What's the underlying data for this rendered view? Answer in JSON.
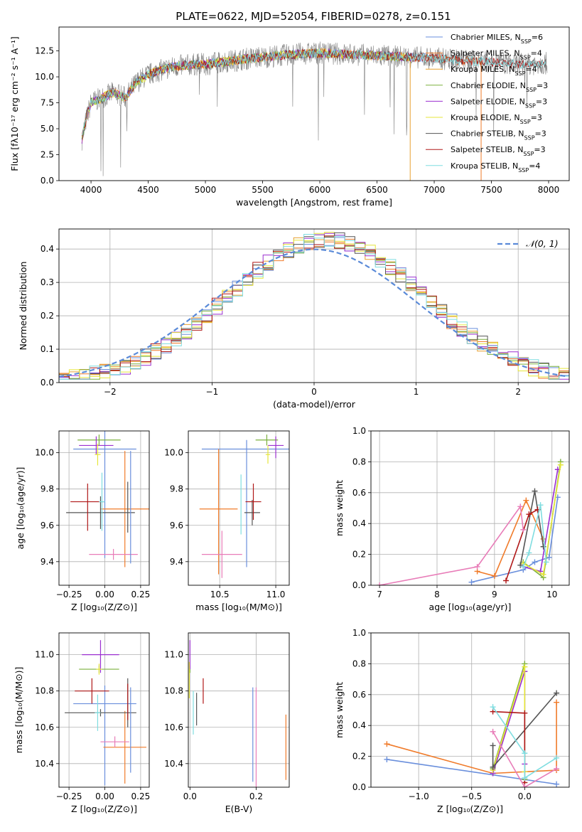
{
  "figure": {
    "title": "PLATE=0622, MJD=52054, FIBERID=0278, z=0.151",
    "colors": {
      "Chabrier MILES": "#6a8fdc",
      "Salpeter MILES": "#f07b2a",
      "Kroupa MILES": "#e8a030",
      "Chabrier ELODIE": "#7bb03e",
      "Salpeter ELODIE": "#9b2fd0",
      "Kroupa ELODIE": "#e6e63a",
      "Chabrier STELIB": "#555555",
      "Salpeter STELIB": "#b01818",
      "Kroupa STELIB": "#7fdde0",
      "extra": "#e87cb8",
      "data": "#808080"
    }
  },
  "chart_data": [
    {
      "id": "spectrum",
      "type": "line",
      "xlabel": "wavelength [Angstrom, rest frame]",
      "ylabel": "Flux [fλ10⁻¹⁷ erg cm⁻² s⁻¹ A⁻¹]",
      "xlim": [
        3720,
        8180
      ],
      "ylim": [
        0,
        14.8
      ],
      "xticks": [
        4000,
        4500,
        5000,
        5500,
        6000,
        6500,
        7000,
        7500,
        8000
      ],
      "yticks": [
        0.0,
        2.5,
        5.0,
        7.5,
        10.0,
        12.5
      ],
      "legend_position": "upper right",
      "legend": [
        {
          "name": "Chabrier MILES, N_SSP=6",
          "text": "Chabrier MILES, N",
          "sub": "SSP",
          "tail": "=6"
        },
        {
          "name": "Salpeter MILES, N_SSP=4",
          "text": "Salpeter MILES, N",
          "sub": "SSP",
          "tail": "=4"
        },
        {
          "name": "Kroupa MILES, N_SSP=4",
          "text": "Kroupa MILES, N",
          "sub": "SSP",
          "tail": "=4"
        },
        {
          "name": "Chabrier ELODIE, N_SSP=3",
          "text": "Chabrier ELODIE, N",
          "sub": "SSP",
          "tail": "=3"
        },
        {
          "name": "Salpeter ELODIE, N_SSP=3",
          "text": "Salpeter ELODIE, N",
          "sub": "SSP",
          "tail": "=3"
        },
        {
          "name": "Kroupa ELODIE, N_SSP=3",
          "text": "Kroupa ELODIE, N",
          "sub": "SSP",
          "tail": "=3"
        },
        {
          "name": "Chabrier STELIB, N_SSP=3",
          "text": "Chabrier STELIB, N",
          "sub": "SSP",
          "tail": "=3"
        },
        {
          "name": "Salpeter STELIB, N_SSP=3",
          "text": "Salpeter STELIB, N",
          "sub": "SSP",
          "tail": "=3"
        },
        {
          "name": "Kroupa STELIB, N_SSP=4",
          "text": "Kroupa STELIB, N",
          "sub": "SSP",
          "tail": "=4"
        }
      ],
      "continuum": {
        "x": [
          3920,
          3960,
          4000,
          4100,
          4200,
          4300,
          4400,
          4500,
          4600,
          4700,
          4800,
          4900,
          5000,
          5200,
          5400,
          5600,
          5800,
          6000,
          6200,
          6400,
          6600,
          6800,
          7000,
          7200,
          7400,
          7600,
          7800,
          7980
        ],
        "y": [
          4.0,
          6.0,
          7.5,
          8.0,
          8.5,
          8.0,
          9.5,
          10.2,
          10.6,
          10.9,
          11.1,
          11.2,
          11.2,
          11.5,
          11.8,
          12.0,
          12.2,
          12.3,
          12.2,
          12.1,
          12.0,
          11.9,
          11.8,
          11.6,
          11.5,
          11.3,
          11.2,
          11.3
        ]
      }
    },
    {
      "id": "residuals",
      "type": "line",
      "xlabel": "(data-model)/error",
      "ylabel": "Normed distribution",
      "xlim": [
        -2.5,
        2.5
      ],
      "ylim": [
        0,
        0.46
      ],
      "xticks": [
        -2,
        -1,
        0,
        1,
        2
      ],
      "xticklabels": [
        "−2",
        "−1",
        "0",
        "1",
        "2"
      ],
      "yticks": [
        0.0,
        0.1,
        0.2,
        0.3,
        0.4
      ],
      "grid": true,
      "legend_position": "upper right",
      "legend": [
        "𝒩(0, 1)"
      ],
      "normal_curve": {
        "mean": 0,
        "sigma": 1
      }
    },
    {
      "id": "age-vs-Z",
      "type": "scatter",
      "xlabel": "Z [log₁₀(Z/Z⊙)]",
      "ylabel": "age  [log₁₀(age/yr)]",
      "xlim": [
        -0.32,
        0.31
      ],
      "ylim": [
        9.27,
        10.12
      ],
      "xticks": [
        -0.25,
        0.0,
        0.25
      ],
      "xticklabels": [
        "−0.25",
        "0.00",
        "0.25"
      ],
      "yticks": [
        9.4,
        9.6,
        9.8,
        10.0
      ],
      "grid": true,
      "points": [
        {
          "series": "Chabrier MILES",
          "x": 0.0,
          "y": 10.02,
          "xerr": 0.22,
          "yerr_lo": 0.6,
          "yerr_hi": 0.1
        },
        {
          "series": "Salpeter MILES",
          "x": 0.14,
          "y": 9.69,
          "xerr": 0.17,
          "yerr_lo": 0.32,
          "yerr_hi": 0.32
        },
        {
          "series": "Chabrier ELODIE",
          "x": -0.04,
          "y": 10.07,
          "xerr": 0.15,
          "yerr_lo": 0.03,
          "yerr_hi": 0.03
        },
        {
          "series": "Salpeter ELODIE",
          "x": -0.06,
          "y": 10.04,
          "xerr": 0.12,
          "yerr_lo": 0.05,
          "yerr_hi": 0.05
        },
        {
          "series": "Kroupa ELODIE",
          "x": -0.05,
          "y": 9.99,
          "xerr": 0.02,
          "yerr_lo": 0.06,
          "yerr_hi": 0.06
        },
        {
          "series": "Chabrier STELIB",
          "x": -0.03,
          "y": 9.67,
          "xerr": 0.24,
          "yerr_lo": 0.09,
          "yerr_hi": 0.09
        },
        {
          "series": "Salpeter STELIB",
          "x": -0.12,
          "y": 9.73,
          "xerr": 0.12,
          "yerr_lo": 0.16,
          "yerr_hi": 0.1
        },
        {
          "series": "Kroupa STELIB",
          "x": -0.02,
          "y": 9.73,
          "xerr": 0.02,
          "yerr_lo": 0.16,
          "yerr_hi": 0.16
        },
        {
          "series": "extra",
          "x": 0.06,
          "y": 9.44,
          "xerr": 0.17,
          "yerr_lo": 0.03,
          "yerr_hi": 0.03
        },
        {
          "series": "Chabrier MILES",
          "x": 0.18,
          "y": 9.7,
          "xerr": 0.0,
          "yerr_lo": 0.31,
          "yerr_hi": 0.31
        },
        {
          "series": "Chabrier STELIB",
          "x": 0.16,
          "y": 9.7,
          "xerr": 0.0,
          "yerr_lo": 0.14,
          "yerr_hi": 0.14
        }
      ]
    },
    {
      "id": "age-vs-mass",
      "type": "scatter",
      "xlabel": "mass [log₁₀(M/M⊙)]",
      "xlim": [
        10.22,
        11.12
      ],
      "ylim": [
        9.27,
        10.12
      ],
      "xticks": [
        10.5,
        11.0
      ],
      "xticklabels": [
        "10.5",
        "11.0"
      ],
      "yticks": [
        9.4,
        9.6,
        9.8,
        10.0
      ],
      "grid": true,
      "points": [
        {
          "series": "Chabrier MILES",
          "x": 10.74,
          "y": 10.02,
          "xerr": 0.4,
          "yerr_lo": 0.65,
          "yerr_hi": 0.05
        },
        {
          "series": "Salpeter MILES",
          "x": 10.49,
          "y": 9.69,
          "xerr": 0.17,
          "yerr_lo": 0.36,
          "yerr_hi": 0.33
        },
        {
          "series": "Chabrier ELODIE",
          "x": 10.92,
          "y": 10.07,
          "xerr": 0.1,
          "yerr_lo": 0.03,
          "yerr_hi": 0.03
        },
        {
          "series": "Salpeter ELODIE",
          "x": 11.0,
          "y": 10.04,
          "xerr": 0.07,
          "yerr_lo": 0.07,
          "yerr_hi": 0.05
        },
        {
          "series": "Kroupa ELODIE",
          "x": 10.93,
          "y": 9.99,
          "xerr": 0.02,
          "yerr_lo": 0.05,
          "yerr_hi": 0.05
        },
        {
          "series": "Chabrier STELIB",
          "x": 10.79,
          "y": 9.67,
          "xerr": 0.07,
          "yerr_lo": 0.07,
          "yerr_hi": 0.07
        },
        {
          "series": "Salpeter STELIB",
          "x": 10.8,
          "y": 9.73,
          "xerr": 0.07,
          "yerr_lo": 0.1,
          "yerr_hi": 0.1
        },
        {
          "series": "Kroupa STELIB",
          "x": 10.69,
          "y": 9.72,
          "xerr": 0.0,
          "yerr_lo": 0.17,
          "yerr_hi": 0.16
        },
        {
          "series": "extra",
          "x": 10.52,
          "y": 9.44,
          "xerr": 0.18,
          "yerr_lo": 0.13,
          "yerr_hi": 0.13
        }
      ]
    },
    {
      "id": "weight-vs-age",
      "type": "line",
      "xlabel": "age  [log₁₀(age/yr)]",
      "ylabel": "mass weight",
      "xlim": [
        6.85,
        10.3
      ],
      "ylim": [
        0,
        1.0
      ],
      "xticks": [
        7,
        8,
        9,
        10
      ],
      "xticklabels": [
        "7",
        "8",
        "9",
        "10"
      ],
      "yticks": [
        0.0,
        0.2,
        0.4,
        0.6,
        0.8,
        1.0
      ],
      "grid": true,
      "series": [
        {
          "series": "Chabrier MILES",
          "x": [
            8.6,
            9.5,
            9.7,
            9.95,
            10.1
          ],
          "y": [
            0.02,
            0.1,
            0.15,
            0.18,
            0.57
          ]
        },
        {
          "series": "Salpeter MILES",
          "x": [
            8.7,
            9.0,
            9.55,
            9.85
          ],
          "y": [
            0.09,
            0.06,
            0.55,
            0.3
          ]
        },
        {
          "series": "Chabrier ELODIE",
          "x": [
            9.5,
            9.85,
            10.15
          ],
          "y": [
            0.15,
            0.05,
            0.8
          ]
        },
        {
          "series": "Salpeter ELODIE",
          "x": [
            9.5,
            9.8,
            10.1
          ],
          "y": [
            0.12,
            0.09,
            0.75
          ]
        },
        {
          "series": "Kroupa ELODIE",
          "x": [
            9.5,
            9.85,
            10.15
          ],
          "y": [
            0.14,
            0.07,
            0.78
          ]
        },
        {
          "series": "Chabrier STELIB",
          "x": [
            9.45,
            9.7,
            9.85
          ],
          "y": [
            0.13,
            0.61,
            0.25
          ]
        },
        {
          "series": "Salpeter STELIB",
          "x": [
            9.2,
            9.6,
            9.75
          ],
          "y": [
            0.03,
            0.46,
            0.49
          ]
        },
        {
          "series": "Kroupa STELIB",
          "x": [
            9.5,
            9.6,
            9.8,
            9.9
          ],
          "y": [
            0.12,
            0.21,
            0.52,
            0.15
          ]
        },
        {
          "series": "extra",
          "x": [
            7.0,
            8.7,
            9.45,
            9.5
          ],
          "y": [
            0.0,
            0.12,
            0.51,
            0.36
          ]
        }
      ]
    },
    {
      "id": "mass-vs-Z",
      "type": "scatter",
      "xlabel": "Z [log₁₀(Z/Z⊙)]",
      "ylabel": "mass [log₁₀(M/M⊙)]",
      "xlim": [
        -0.32,
        0.31
      ],
      "ylim": [
        10.27,
        11.12
      ],
      "xticks": [
        -0.25,
        0.0,
        0.25
      ],
      "xticklabels": [
        "−0.25",
        "0.00",
        "0.25"
      ],
      "yticks": [
        10.4,
        10.6,
        10.8,
        11.0
      ],
      "grid": true,
      "points": [
        {
          "series": "Chabrier MILES",
          "x": 0.0,
          "y": 10.73,
          "xerr": 0.22,
          "yerr_lo": 0.45,
          "yerr_hi": 0.1
        },
        {
          "series": "Salpeter MILES",
          "x": 0.14,
          "y": 10.49,
          "xerr": 0.15,
          "yerr_lo": 0.2,
          "yerr_hi": 0.2
        },
        {
          "series": "Chabrier ELODIE",
          "x": -0.04,
          "y": 10.92,
          "xerr": 0.14,
          "yerr_lo": 0.02,
          "yerr_hi": 0.02
        },
        {
          "series": "Salpeter ELODIE",
          "x": -0.03,
          "y": 11.0,
          "xerr": 0.13,
          "yerr_lo": 0.1,
          "yerr_hi": 0.08
        },
        {
          "series": "Kroupa ELODIE",
          "x": -0.04,
          "y": 10.92,
          "xerr": 0.02,
          "yerr_lo": 0.03,
          "yerr_hi": 0.03
        },
        {
          "series": "Chabrier STELIB",
          "x": -0.03,
          "y": 10.68,
          "xerr": 0.25,
          "yerr_lo": 0.02,
          "yerr_hi": 0.02
        },
        {
          "series": "Salpeter STELIB",
          "x": -0.09,
          "y": 10.8,
          "xerr": 0.12,
          "yerr_lo": 0.07,
          "yerr_hi": 0.07
        },
        {
          "series": "Kroupa STELIB",
          "x": -0.05,
          "y": 10.68,
          "xerr": 0.02,
          "yerr_lo": 0.1,
          "yerr_hi": 0.1
        },
        {
          "series": "extra",
          "x": 0.07,
          "y": 10.52,
          "xerr": 0.1,
          "yerr_lo": 0.03,
          "yerr_hi": 0.03
        },
        {
          "series": "Chabrier MILES",
          "x": 0.18,
          "y": 10.6,
          "xerr": 0.0,
          "yerr_lo": 0.25,
          "yerr_hi": 0.22
        },
        {
          "series": "Chabrier STELIB",
          "x": 0.16,
          "y": 10.72,
          "xerr": 0.0,
          "yerr_lo": 0.12,
          "yerr_hi": 0.15
        },
        {
          "series": "Salpeter STELIB",
          "x": 0.16,
          "y": 10.72,
          "xerr": 0.0,
          "yerr_lo": 0.08,
          "yerr_hi": 0.12
        }
      ]
    },
    {
      "id": "mass-vs-EBV",
      "type": "scatter",
      "xlabel": "E(B-V)",
      "xlim": [
        -0.005,
        0.3
      ],
      "ylim": [
        10.27,
        11.12
      ],
      "xticks": [
        0.0,
        0.2
      ],
      "xticklabels": [
        "0.0",
        "0.2"
      ],
      "yticks": [
        10.4,
        10.6,
        10.8,
        11.0
      ],
      "grid": true,
      "points": [
        {
          "series": "Chabrier MILES",
          "x": 0.19,
          "y": 10.56,
          "xerr": 0.0,
          "yerr_lo": 0.26,
          "yerr_hi": 0.26
        },
        {
          "series": "Salpeter MILES",
          "x": 0.29,
          "y": 10.49,
          "xerr": 0.0,
          "yerr_lo": 0.18,
          "yerr_hi": 0.18
        },
        {
          "series": "Chabrier ELODIE",
          "x": 0.0,
          "y": 10.92,
          "xerr": 0.0,
          "yerr_lo": 0.02,
          "yerr_hi": 0.02
        },
        {
          "series": "Salpeter ELODIE",
          "x": 0.0,
          "y": 11.0,
          "xerr": 0.0,
          "yerr_lo": 0.08,
          "yerr_hi": 0.08
        },
        {
          "series": "Kroupa ELODIE",
          "x": -0.002,
          "y": 10.86,
          "xerr": 0.0,
          "yerr_lo": 0.1,
          "yerr_hi": 0.1
        },
        {
          "series": "Chabrier STELIB",
          "x": 0.02,
          "y": 10.7,
          "xerr": 0.0,
          "yerr_lo": 0.09,
          "yerr_hi": 0.09
        },
        {
          "series": "Salpeter STELIB",
          "x": 0.04,
          "y": 10.8,
          "xerr": 0.0,
          "yerr_lo": 0.07,
          "yerr_hi": 0.07
        },
        {
          "series": "Kroupa STELIB",
          "x": 0.01,
          "y": 10.68,
          "xerr": 0.0,
          "yerr_lo": 0.12,
          "yerr_hi": 0.12
        },
        {
          "series": "extra",
          "x": 0.2,
          "y": 10.52,
          "xerr": 0.0,
          "yerr_lo": 0.3,
          "yerr_hi": 0.3
        }
      ]
    },
    {
      "id": "weight-vs-Z",
      "type": "line",
      "xlabel": "Z [log₁₀(Z/Z⊙)]",
      "ylabel": "mass weight",
      "xlim": [
        -1.45,
        0.42
      ],
      "ylim": [
        0,
        1.0
      ],
      "xticks": [
        -1.0,
        -0.5,
        0.0
      ],
      "xticklabels": [
        "−1.0",
        "−0.5",
        "0.0"
      ],
      "yticks": [
        0.0,
        0.2,
        0.4,
        0.6,
        0.8,
        1.0
      ],
      "grid": true,
      "series": [
        {
          "series": "Chabrier MILES",
          "x": [
            -1.3,
            0.3
          ],
          "y": [
            0.18,
            0.02
          ]
        },
        {
          "series": "Salpeter MILES",
          "x": [
            -1.3,
            -0.3,
            0.3,
            0.3
          ],
          "y": [
            0.28,
            0.09,
            0.11,
            0.55
          ]
        },
        {
          "series": "Chabrier ELODIE",
          "x": [
            -0.3,
            0.0,
            0.0
          ],
          "y": [
            0.12,
            0.8,
            0.05
          ]
        },
        {
          "series": "Salpeter ELODIE",
          "x": [
            -0.3,
            0.0,
            0.0
          ],
          "y": [
            0.09,
            0.75,
            0.15
          ]
        },
        {
          "series": "Kroupa ELODIE",
          "x": [
            -0.3,
            0.0,
            0.0
          ],
          "y": [
            0.11,
            0.78,
            0.1
          ]
        },
        {
          "series": "Chabrier STELIB",
          "x": [
            -0.3,
            0.3
          ],
          "y": [
            0.13,
            0.61
          ]
        },
        {
          "series": "Salpeter STELIB",
          "x": [
            -0.3,
            0.0,
            0.0
          ],
          "y": [
            0.49,
            0.48,
            0.03
          ]
        },
        {
          "series": "Kroupa STELIB",
          "x": [
            -0.3,
            0.0,
            0.0,
            0.3
          ],
          "y": [
            0.52,
            0.22,
            0.06,
            0.19
          ]
        },
        {
          "series": "extra",
          "x": [
            -0.3,
            0.0,
            0.3
          ],
          "y": [
            0.36,
            0.0,
            0.12
          ]
        },
        {
          "series": "Chabrier STELIB",
          "x": [
            -0.3,
            -0.3
          ],
          "y": [
            0.27,
            0.13
          ]
        }
      ]
    }
  ]
}
